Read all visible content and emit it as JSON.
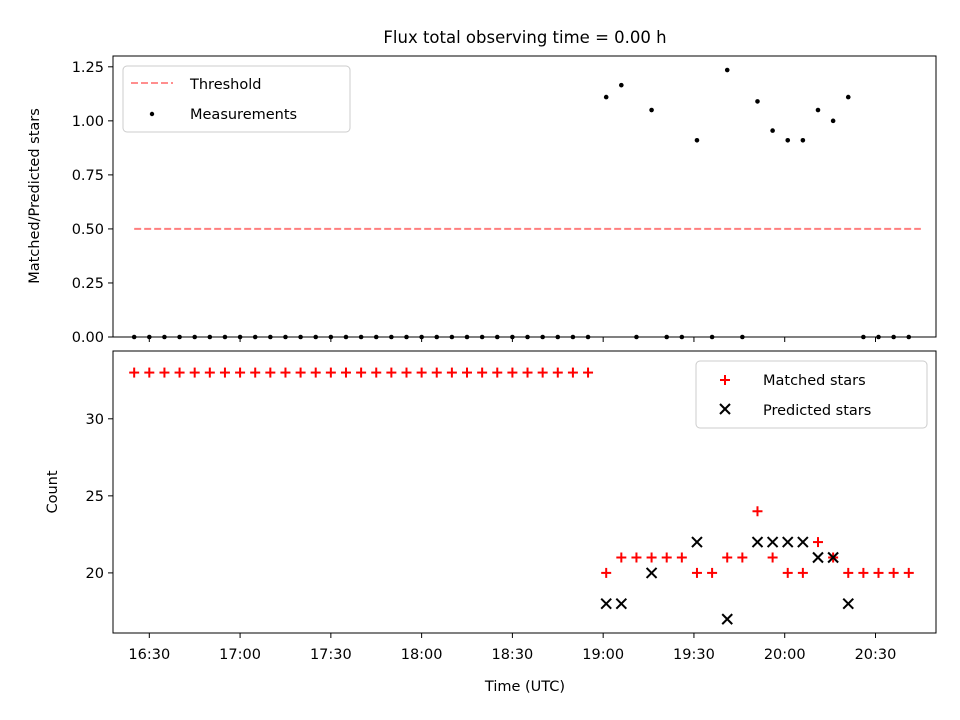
{
  "chart_data": [
    {
      "type": "scatter",
      "title": "Flux total observing time = 0.00 h",
      "xlabel": "",
      "ylabel": "Matched/Predicted stars",
      "x_unit": "time_utc",
      "xlim": [
        "16:18",
        "20:50"
      ],
      "ylim": [
        0,
        1.3
      ],
      "yticks": [
        "0.00",
        "0.25",
        "0.50",
        "0.75",
        "1.00",
        "1.25"
      ],
      "xticks": [
        "16:30",
        "17:00",
        "17:30",
        "18:00",
        "18:30",
        "19:00",
        "19:30",
        "20:00",
        "20:30"
      ],
      "grid": false,
      "legend_position": "upper-left",
      "series": [
        {
          "name": "Threshold",
          "kind": "dashed-line",
          "color": "#ff7f7f",
          "points": [
            [
              "16:25",
              0.5
            ],
            [
              "20:45",
              0.5
            ]
          ]
        },
        {
          "name": "Measurements",
          "kind": "dot",
          "color": "#000000",
          "points": [
            [
              "16:25",
              0
            ],
            [
              "16:30",
              0
            ],
            [
              "16:35",
              0
            ],
            [
              "16:40",
              0
            ],
            [
              "16:45",
              0
            ],
            [
              "16:50",
              0
            ],
            [
              "16:55",
              0
            ],
            [
              "17:00",
              0
            ],
            [
              "17:05",
              0
            ],
            [
              "17:10",
              0
            ],
            [
              "17:15",
              0
            ],
            [
              "17:20",
              0
            ],
            [
              "17:25",
              0
            ],
            [
              "17:30",
              0
            ],
            [
              "17:35",
              0
            ],
            [
              "17:40",
              0
            ],
            [
              "17:45",
              0
            ],
            [
              "17:50",
              0
            ],
            [
              "17:55",
              0
            ],
            [
              "18:00",
              0
            ],
            [
              "18:05",
              0
            ],
            [
              "18:10",
              0
            ],
            [
              "18:15",
              0
            ],
            [
              "18:20",
              0
            ],
            [
              "18:25",
              0
            ],
            [
              "18:30",
              0
            ],
            [
              "18:35",
              0
            ],
            [
              "18:40",
              0
            ],
            [
              "18:45",
              0
            ],
            [
              "18:50",
              0
            ],
            [
              "18:55",
              0
            ],
            [
              "19:01",
              1.11
            ],
            [
              "19:06",
              1.165
            ],
            [
              "19:11",
              0
            ],
            [
              "19:16",
              1.05
            ],
            [
              "19:21",
              0
            ],
            [
              "19:26",
              0
            ],
            [
              "19:31",
              0.91
            ],
            [
              "19:36",
              0
            ],
            [
              "19:41",
              1.235
            ],
            [
              "19:46",
              0
            ],
            [
              "19:51",
              1.09
            ],
            [
              "19:56",
              0.955
            ],
            [
              "20:01",
              0.91
            ],
            [
              "20:06",
              0.91
            ],
            [
              "20:11",
              1.05
            ],
            [
              "20:16",
              1.0
            ],
            [
              "20:21",
              1.11
            ],
            [
              "20:26",
              0
            ],
            [
              "20:31",
              0
            ],
            [
              "20:36",
              0
            ],
            [
              "20:41",
              0
            ]
          ]
        }
      ]
    },
    {
      "type": "scatter",
      "title": "",
      "xlabel": "Time (UTC)",
      "ylabel": "Count",
      "x_unit": "time_utc",
      "xlim": [
        "16:18",
        "20:50"
      ],
      "ylim": [
        16.1,
        34.4
      ],
      "yticks": [
        "20",
        "25",
        "30"
      ],
      "xticks": [
        "16:30",
        "17:00",
        "17:30",
        "18:00",
        "18:30",
        "19:00",
        "19:30",
        "20:00",
        "20:30"
      ],
      "grid": false,
      "legend_position": "upper-right",
      "series": [
        {
          "name": "Matched stars",
          "kind": "plus",
          "color": "#ff0000",
          "points": [
            [
              "16:25",
              33
            ],
            [
              "16:30",
              33
            ],
            [
              "16:35",
              33
            ],
            [
              "16:40",
              33
            ],
            [
              "16:45",
              33
            ],
            [
              "16:50",
              33
            ],
            [
              "16:55",
              33
            ],
            [
              "17:00",
              33
            ],
            [
              "17:05",
              33
            ],
            [
              "17:10",
              33
            ],
            [
              "17:15",
              33
            ],
            [
              "17:20",
              33
            ],
            [
              "17:25",
              33
            ],
            [
              "17:30",
              33
            ],
            [
              "17:35",
              33
            ],
            [
              "17:40",
              33
            ],
            [
              "17:45",
              33
            ],
            [
              "17:50",
              33
            ],
            [
              "17:55",
              33
            ],
            [
              "18:00",
              33
            ],
            [
              "18:05",
              33
            ],
            [
              "18:10",
              33
            ],
            [
              "18:15",
              33
            ],
            [
              "18:20",
              33
            ],
            [
              "18:25",
              33
            ],
            [
              "18:30",
              33
            ],
            [
              "18:35",
              33
            ],
            [
              "18:40",
              33
            ],
            [
              "18:45",
              33
            ],
            [
              "18:50",
              33
            ],
            [
              "18:55",
              33
            ],
            [
              "19:01",
              20
            ],
            [
              "19:06",
              21
            ],
            [
              "19:11",
              21
            ],
            [
              "19:16",
              21
            ],
            [
              "19:21",
              21
            ],
            [
              "19:26",
              21
            ],
            [
              "19:31",
              20
            ],
            [
              "19:36",
              20
            ],
            [
              "19:41",
              21
            ],
            [
              "19:46",
              21
            ],
            [
              "19:51",
              24
            ],
            [
              "19:56",
              21
            ],
            [
              "20:01",
              20
            ],
            [
              "20:06",
              20
            ],
            [
              "20:11",
              22
            ],
            [
              "20:16",
              21
            ],
            [
              "20:21",
              20
            ],
            [
              "20:26",
              20
            ],
            [
              "20:31",
              20
            ],
            [
              "20:36",
              20
            ],
            [
              "20:41",
              20
            ]
          ]
        },
        {
          "name": "Predicted stars",
          "kind": "x",
          "color": "#000000",
          "points": [
            [
              "19:01",
              18
            ],
            [
              "19:06",
              18
            ],
            [
              "19:16",
              20
            ],
            [
              "19:31",
              22
            ],
            [
              "19:41",
              17
            ],
            [
              "19:51",
              22
            ],
            [
              "19:56",
              22
            ],
            [
              "20:01",
              22
            ],
            [
              "20:06",
              22
            ],
            [
              "20:11",
              21
            ],
            [
              "20:16",
              21
            ],
            [
              "20:21",
              18
            ]
          ]
        }
      ]
    }
  ]
}
